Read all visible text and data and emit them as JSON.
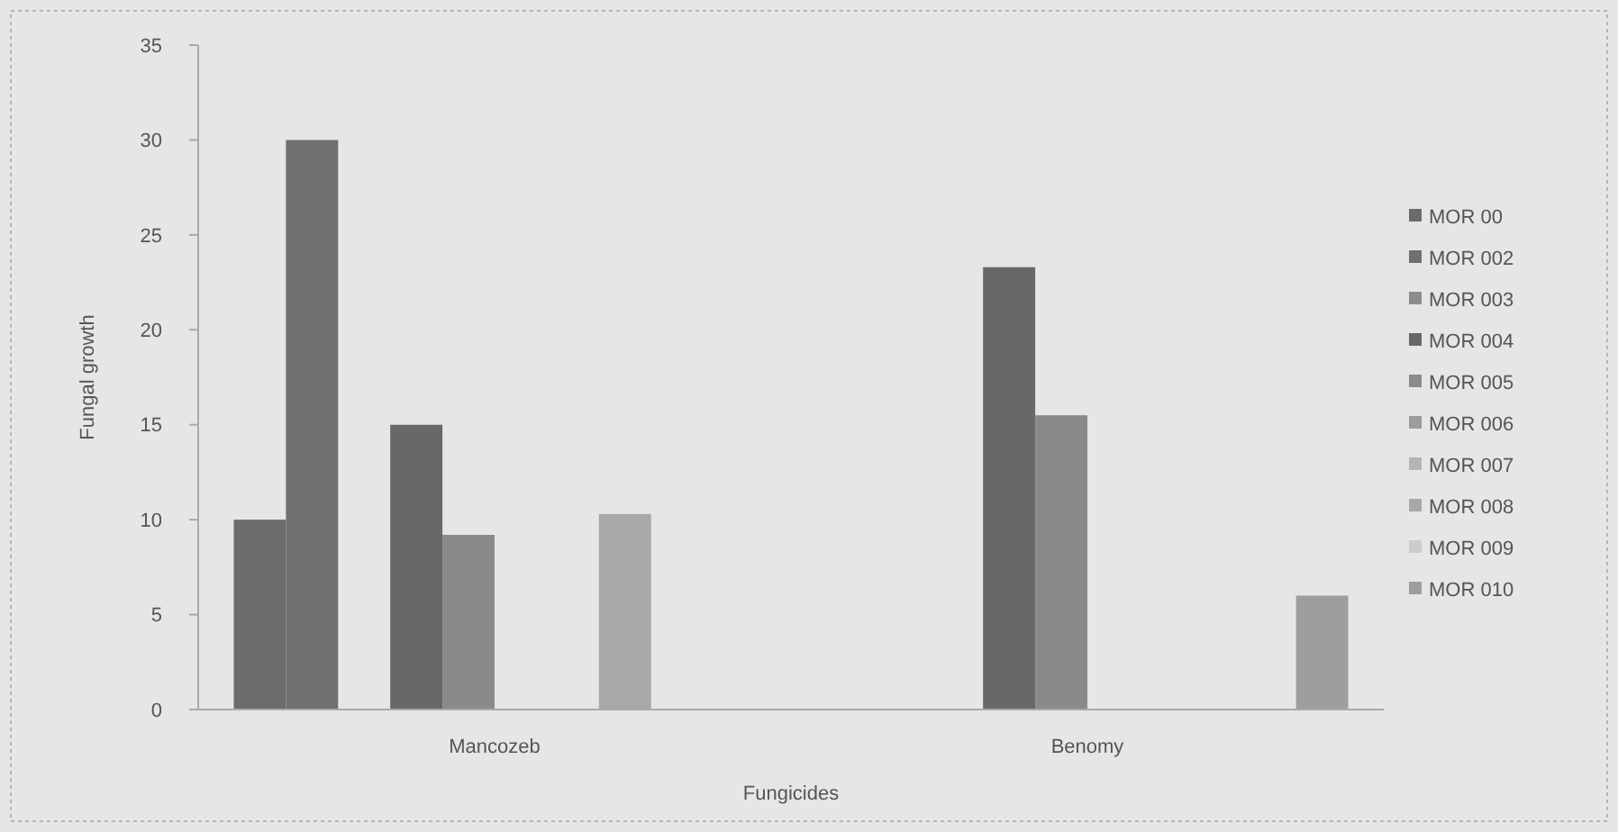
{
  "chart_data": {
    "type": "bar",
    "xlabel": "Fungicides",
    "ylabel": "Fungal growth",
    "categories": [
      "Mancozeb",
      "Benomy"
    ],
    "series": [
      {
        "name": "MOR 00",
        "color": "#6b6b6b",
        "values": [
          10,
          0
        ]
      },
      {
        "name": "MOR 002",
        "color": "#707070",
        "values": [
          30,
          0
        ]
      },
      {
        "name": "MOR 003",
        "color": "#8c8c8c",
        "values": [
          0,
          0
        ]
      },
      {
        "name": "MOR 004",
        "color": "#686868",
        "values": [
          15,
          23.3
        ]
      },
      {
        "name": "MOR 005",
        "color": "#8a8a8a",
        "values": [
          9.2,
          15.5
        ]
      },
      {
        "name": "MOR 006",
        "color": "#9c9c9c",
        "values": [
          0,
          0
        ]
      },
      {
        "name": "MOR 007",
        "color": "#b4b4b4",
        "values": [
          0,
          0
        ]
      },
      {
        "name": "MOR 008",
        "color": "#a8a8a8",
        "values": [
          10.3,
          0
        ]
      },
      {
        "name": "MOR 009",
        "color": "#cccccc",
        "values": [
          0,
          0
        ]
      },
      {
        "name": "MOR 010",
        "color": "#9e9e9e",
        "values": [
          0,
          6
        ]
      }
    ],
    "ylim": [
      0,
      35
    ],
    "yticks": [
      0,
      5,
      10,
      15,
      20,
      25,
      30,
      35
    ],
    "grid": false,
    "legend": "right"
  }
}
